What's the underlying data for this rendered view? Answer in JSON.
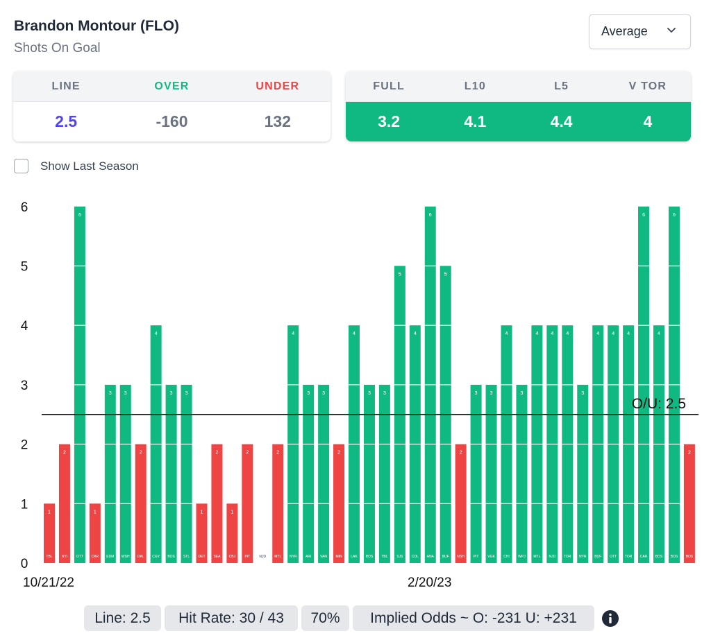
{
  "header": {
    "player": "Brandon Montour (FLO)",
    "stat": "Shots On Goal",
    "dropdown": {
      "selected": "Average",
      "icon": "chevron-down-icon"
    }
  },
  "line_card": {
    "headers": [
      "LINE",
      "OVER",
      "UNDER"
    ],
    "values": [
      "2.5",
      "-160",
      "132"
    ]
  },
  "avg_card": {
    "headers": [
      "FULL",
      "L10",
      "L5",
      "V TOR"
    ],
    "values": [
      "3.2",
      "4.1",
      "4.4",
      "4"
    ]
  },
  "toggle": {
    "label": "Show Last Season",
    "checked": false
  },
  "footer": {
    "line": "Line: 2.5",
    "hit_rate": "Hit Rate: 30 / 43",
    "pct": "70%",
    "implied": "Implied Odds ~ O: -231 U: +231",
    "info_icon": "info-icon"
  },
  "colors": {
    "over": "#10b981",
    "under": "#ef4444",
    "line_value": "#4f46e5",
    "ou_line": "#111111"
  },
  "chart_data": {
    "type": "bar",
    "title": "Shots On Goal",
    "xlabel": "",
    "ylabel": "",
    "ylim": [
      0,
      6
    ],
    "yticks": [
      0,
      1,
      2,
      3,
      4,
      5,
      6
    ],
    "threshold": 2.5,
    "threshold_label": "O/U: 2.5",
    "date_labels": [
      {
        "index": 0,
        "label": "10/21/22"
      },
      {
        "index": 25,
        "label": "2/20/23"
      }
    ],
    "categories": [
      "TBL",
      "NYI",
      "OTT",
      "CAR",
      "EDM",
      "WSH",
      "DAL",
      "CGY",
      "BOS",
      "STL",
      "DET",
      "SEA",
      "CBJ",
      "PIT",
      "NJD",
      "MTL",
      "NYR",
      "ARI",
      "VAN",
      "MIN",
      "LAK",
      "BOS",
      "TBL",
      "SJS",
      "COL",
      "ANA",
      "BUF",
      "NSH",
      "PIT",
      "VGK",
      "CHI",
      "WPJ",
      "MTL",
      "NJD",
      "TOR",
      "NYR",
      "BUF",
      "OTT",
      "TOR",
      "CAR",
      "BOS",
      "BOS",
      "BOS"
    ],
    "values": [
      1,
      2,
      6,
      1,
      3,
      3,
      2,
      4,
      3,
      3,
      1,
      2,
      1,
      2,
      0,
      2,
      4,
      3,
      3,
      2,
      4,
      3,
      3,
      5,
      4,
      6,
      5,
      2,
      3,
      3,
      4,
      3,
      4,
      4,
      4,
      3,
      4,
      4,
      4,
      6,
      4,
      6,
      2
    ]
  }
}
